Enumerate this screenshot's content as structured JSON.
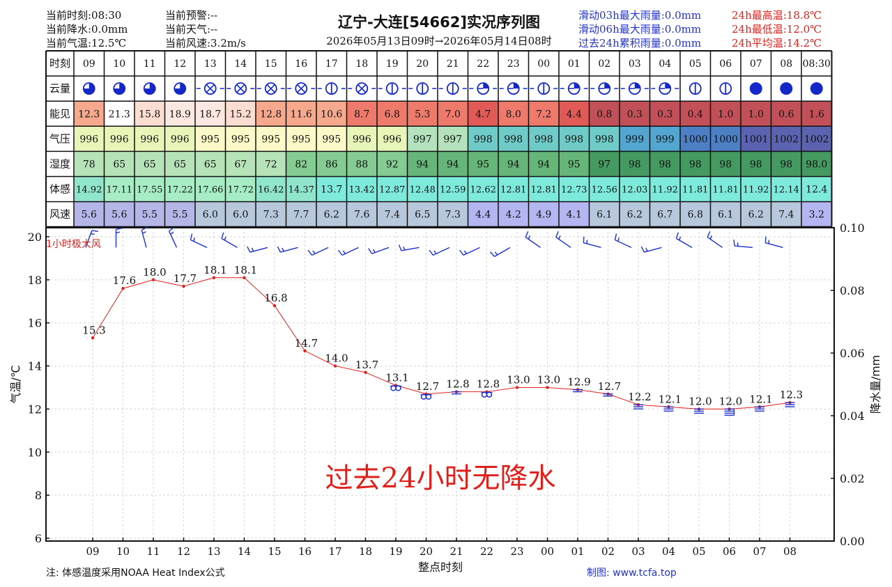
{
  "header": {
    "left": [
      {
        "label": "当前时刻:08:30"
      },
      {
        "label": "当前降水:0.0mm"
      },
      {
        "label": "当前气温:12.5℃"
      }
    ],
    "mid": [
      {
        "label": "当前预警:--"
      },
      {
        "label": "当前天气:--"
      },
      {
        "label": "当前风速:3.2m/s"
      }
    ],
    "title": "辽宁-大连[54662]实况序列图",
    "period": "2026年05月13日09时→2026年05月14日08时",
    "rain": [
      {
        "label": "滑动03h最大雨量:0.0mm"
      },
      {
        "label": "滑动06h最大雨量:0.0mm"
      },
      {
        "label": "过去24h累积雨量:0.0mm"
      }
    ],
    "temp": [
      {
        "label": "24h最高温:18.8℃"
      },
      {
        "label": "24h最低温:12.0℃"
      },
      {
        "label": "24h平均温:14.2℃"
      }
    ]
  },
  "table": {
    "row_labels": [
      "时刻",
      "云量",
      "能见",
      "气压",
      "湿度",
      "体感",
      "风速"
    ],
    "hours": [
      "09",
      "10",
      "11",
      "12",
      "13",
      "14",
      "15",
      "16",
      "17",
      "18",
      "19",
      "20",
      "21",
      "22",
      "23",
      "00",
      "01",
      "02",
      "03",
      "04",
      "05",
      "06",
      "07",
      "08",
      "08:30"
    ],
    "cloud": [
      {
        "icon": "three-quarter",
        "dash": false
      },
      {
        "icon": "three-quarter",
        "dash": false
      },
      {
        "icon": "three-quarter",
        "dash": false
      },
      {
        "icon": "three-quarter",
        "dash": false
      },
      {
        "icon": "obscured",
        "dash": true
      },
      {
        "icon": "obscured",
        "dash": true
      },
      {
        "icon": "obscured",
        "dash": true
      },
      {
        "icon": "obscured",
        "dash": true
      },
      {
        "icon": "half-line",
        "dash": true
      },
      {
        "icon": "obscured",
        "dash": true
      },
      {
        "icon": "half-line",
        "dash": true
      },
      {
        "icon": "half-line",
        "dash": true
      },
      {
        "icon": "half-line",
        "dash": true
      },
      {
        "icon": "quarter-top",
        "dash": true
      },
      {
        "icon": "quarter-top",
        "dash": true
      },
      {
        "icon": "half-line",
        "dash": true
      },
      {
        "icon": "quarter-top",
        "dash": true
      },
      {
        "icon": "quarter-top",
        "dash": true
      },
      {
        "icon": "quarter-top",
        "dash": true
      },
      {
        "icon": "quarter-top",
        "dash": true
      },
      {
        "icon": "half-line",
        "dash": false
      },
      {
        "icon": "half-line",
        "dash": false
      },
      {
        "icon": "full",
        "dash": false
      },
      {
        "icon": "full",
        "dash": false
      },
      {
        "icon": "full",
        "dash": false
      }
    ],
    "visibility": [
      "12.3",
      "21.3",
      "15.8",
      "18.9",
      "18.7",
      "15.2",
      "12.8",
      "11.6",
      "10.6",
      "8.7",
      "6.8",
      "5.3",
      "7.0",
      "4.7",
      "8.0",
      "7.2",
      "4.4",
      "0.8",
      "0.3",
      "0.3",
      "0.4",
      "1.0",
      "1.0",
      "0.6",
      "1.6"
    ],
    "visibility_colors": [
      "#f6a98d",
      "#ffffff",
      "#fbddd2",
      "#fbe8e0",
      "#fbe8e0",
      "#fbddd2",
      "#f6a98d",
      "#f6a98d",
      "#f6a98d",
      "#ee7a6c",
      "#ee7a6c",
      "#ee7a6c",
      "#ee7a6c",
      "#e05a58",
      "#ee7a6c",
      "#ee7a6c",
      "#e05a58",
      "#c25059",
      "#c25059",
      "#c25059",
      "#c25059",
      "#c25059",
      "#c25059",
      "#c25059",
      "#c25059"
    ],
    "pressure": [
      "996",
      "996",
      "996",
      "996",
      "995",
      "995",
      "995",
      "995",
      "995",
      "996",
      "996",
      "997",
      "997",
      "998",
      "998",
      "998",
      "998",
      "998",
      "999",
      "999",
      "1000",
      "1000",
      "1001",
      "1002",
      "1002"
    ],
    "pressure_colors": [
      "#e8f5b8",
      "#e8f5b8",
      "#e8f5b8",
      "#e8f5b8",
      "#fbf9c8",
      "#fbf9c8",
      "#fbf9c8",
      "#fbf9c8",
      "#fbf9c8",
      "#e8f5b8",
      "#e8f5b8",
      "#b4e2bc",
      "#b4e2bc",
      "#6fcbc8",
      "#6fcbc8",
      "#6fcbc8",
      "#6fcbc8",
      "#6fcbc8",
      "#52a6d0",
      "#52a6d0",
      "#4d7fc4",
      "#4d7fc4",
      "#5b63b0",
      "#5b63b0",
      "#5b63b0"
    ],
    "humidity": [
      "78",
      "65",
      "65",
      "65",
      "65",
      "67",
      "72",
      "82",
      "86",
      "88",
      "92",
      "94",
      "94",
      "95",
      "94",
      "94",
      "95",
      "97",
      "98",
      "98",
      "98",
      "98",
      "98",
      "98",
      "98.0"
    ],
    "humidity_colors": [
      "#b6e3b7",
      "#b6e3b7",
      "#b6e3b7",
      "#b6e3b7",
      "#b6e3b7",
      "#b6e3b7",
      "#b6e3b7",
      "#84cc92",
      "#84cc92",
      "#84cc92",
      "#84cc92",
      "#66b67a",
      "#66b67a",
      "#66b67a",
      "#66b67a",
      "#66b67a",
      "#66b67a",
      "#459a61",
      "#459a61",
      "#459a61",
      "#459a61",
      "#459a61",
      "#459a61",
      "#459a61",
      "#459a61"
    ],
    "feels_like": [
      "14.92",
      "17.11",
      "17.55",
      "17.22",
      "17.66",
      "17.72",
      "16.42",
      "14.37",
      "13.7",
      "13.42",
      "12.87",
      "12.48",
      "12.59",
      "12.62",
      "12.81",
      "12.81",
      "12.73",
      "12.56",
      "12.03",
      "11.92",
      "11.81",
      "11.81",
      "11.92",
      "12.14",
      "12.4"
    ],
    "feels_like_colors": [
      "#8fe6cd",
      "#a6ecc4",
      "#a6ecc4",
      "#a6ecc4",
      "#a6ecc4",
      "#a6ecc4",
      "#8fe6cd",
      "#8fe6cd",
      "#7eeadc",
      "#7eeadc",
      "#7eeadc",
      "#7eeadc",
      "#7eeadc",
      "#7eeadc",
      "#7eeadc",
      "#7eeadc",
      "#7eeadc",
      "#7eeadc",
      "#7eeadc",
      "#7eeadc",
      "#7eeadc",
      "#7eeadc",
      "#7eeadc",
      "#7eeadc",
      "#7eeadc"
    ],
    "wind_speed": [
      "5.6",
      "5.6",
      "5.5",
      "5.5",
      "6.0",
      "6.0",
      "7.3",
      "7.7",
      "6.2",
      "7.6",
      "7.4",
      "6.5",
      "7.3",
      "4.4",
      "4.2",
      "4.9",
      "4.1",
      "6.1",
      "6.2",
      "6.7",
      "6.8",
      "6.1",
      "6.2",
      "7.4",
      "3.2"
    ],
    "wind_speed_colors": [
      "#b3b6e6",
      "#b3b6e6",
      "#b3b6e6",
      "#b3b6e6",
      "#b8c8dc",
      "#b8c8dc",
      "#b8c8dc",
      "#b8c8dc",
      "#b8c8dc",
      "#b8c8dc",
      "#b8c8dc",
      "#b8c8dc",
      "#b8c8dc",
      "#b3b6f0",
      "#b3b6f0",
      "#b3b6f0",
      "#b3b6f0",
      "#b8c8dc",
      "#b8c8dc",
      "#b8c8dc",
      "#b8c8dc",
      "#b8c8dc",
      "#b8c8dc",
      "#b8c8dc",
      "#b3b6f0"
    ]
  },
  "chart_data": {
    "type": "line",
    "x": [
      "09",
      "10",
      "11",
      "12",
      "13",
      "14",
      "15",
      "16",
      "17",
      "18",
      "19",
      "20",
      "21",
      "22",
      "23",
      "00",
      "01",
      "02",
      "03",
      "04",
      "05",
      "06",
      "07",
      "08"
    ],
    "series": [
      {
        "values": [
          15.3,
          17.6,
          18.0,
          17.7,
          18.1,
          18.1,
          16.8,
          14.7,
          14.0,
          13.7,
          13.1,
          12.7,
          12.8,
          12.8,
          13.0,
          13.0,
          12.9,
          12.7,
          12.2,
          12.1,
          12.0,
          12.0,
          12.1,
          12.3
        ],
        "color": "#e0201a"
      }
    ],
    "wind_direction_deg": [
      200,
      180,
      165,
      155,
      115,
      120,
      75,
      75,
      65,
      65,
      70,
      80,
      65,
      65,
      60,
      125,
      125,
      105,
      115,
      75,
      120,
      125,
      95,
      105
    ],
    "xlabel": "整点时刻",
    "ylabel": "气温/℃",
    "y2label": "降水量/mm",
    "ylim": [
      6,
      20
    ],
    "yticks": [
      6,
      8,
      10,
      12,
      14,
      16,
      18,
      20
    ],
    "y2lim": [
      0.0,
      0.1
    ],
    "y2ticks": [
      "0.00",
      "0.02",
      "0.04",
      "0.06",
      "0.08",
      "0.10"
    ],
    "grid": true,
    "annotation_gust": "1小时极大风",
    "annotation_norain": "过去24小时无降水",
    "weather_symbols": [
      {
        "hour": "19",
        "symbol": "fog-rings"
      },
      {
        "hour": "20",
        "symbol": "fog-rings"
      },
      {
        "hour": "21",
        "symbol": "haze-bars"
      },
      {
        "hour": "22",
        "symbol": "fog-rings"
      },
      {
        "hour": "01",
        "symbol": "haze-bars"
      },
      {
        "hour": "02",
        "symbol": "haze-bars"
      },
      {
        "hour": "03",
        "symbol": "fog-bars"
      },
      {
        "hour": "04",
        "symbol": "fog-bars"
      },
      {
        "hour": "05",
        "symbol": "fog-bars"
      },
      {
        "hour": "06",
        "symbol": "fog-bars-thick"
      },
      {
        "hour": "07",
        "symbol": "fog-bars"
      },
      {
        "hour": "08",
        "symbol": "fog-bars"
      }
    ]
  },
  "footer": {
    "note": "注: 体感温度采用NOAA Heat Index公式",
    "credit": "制图: www.tcfa.top"
  }
}
